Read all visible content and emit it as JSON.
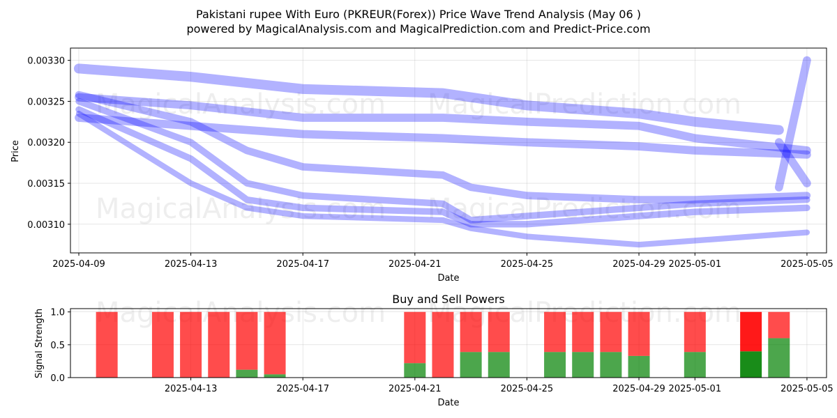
{
  "header": {
    "title": "Pakistani rupee With Euro (PKREUR(Forex)) Price Wave Trend Analysis (May 06 )",
    "subtitle": "powered by MagicalAnalysis.com and MagicalPrediction.com and Predict-Price.com"
  },
  "watermarks": [
    "MagicalAnalysis.com",
    "MagicalPrediction.com"
  ],
  "colors": {
    "wave": "#0000ff",
    "buy": "#008000",
    "sell": "#ff0000"
  },
  "chart_data": [
    {
      "type": "line",
      "xlabel": "Date",
      "ylabel": "Price",
      "x_ticks": [
        "2025-04-09",
        "2025-04-13",
        "2025-04-17",
        "2025-04-21",
        "2025-04-25",
        "2025-04-29",
        "2025-05-01",
        "2025-05-05"
      ],
      "y_ticks": [
        "0.00310",
        "0.00315",
        "0.00320",
        "0.00325",
        "0.00330"
      ],
      "ylim": [
        0.003065,
        0.003315
      ],
      "xlim": [
        "2025-04-08",
        "2025-05-06"
      ],
      "grid": true,
      "series": [
        {
          "x": [
            "2025-04-09",
            "2025-04-13",
            "2025-04-17",
            "2025-04-22",
            "2025-04-25",
            "2025-04-29",
            "2025-05-01",
            "2025-05-04"
          ],
          "values": [
            0.00329,
            0.00328,
            0.003265,
            0.00326,
            0.003245,
            0.003235,
            0.003225,
            0.003215
          ],
          "width": 1.2e-05
        },
        {
          "x": [
            "2025-04-09",
            "2025-04-13",
            "2025-04-17",
            "2025-04-22",
            "2025-04-25",
            "2025-04-29",
            "2025-05-01",
            "2025-05-05"
          ],
          "values": [
            0.00323,
            0.00322,
            0.00321,
            0.003205,
            0.0032,
            0.003195,
            0.00319,
            0.003185
          ],
          "width": 1e-05
        },
        {
          "x": [
            "2025-04-09",
            "2025-04-13",
            "2025-04-17",
            "2025-04-22",
            "2025-04-25",
            "2025-04-29",
            "2025-05-01",
            "2025-05-05"
          ],
          "values": [
            0.003255,
            0.003245,
            0.00323,
            0.00323,
            0.003225,
            0.00322,
            0.003205,
            0.00319
          ],
          "width": 1e-05
        },
        {
          "x": [
            "2025-04-09",
            "2025-04-13",
            "2025-04-15",
            "2025-04-17",
            "2025-04-22",
            "2025-04-23",
            "2025-04-25",
            "2025-04-29",
            "2025-05-01",
            "2025-05-05"
          ],
          "values": [
            0.003258,
            0.003225,
            0.00319,
            0.00317,
            0.00316,
            0.003145,
            0.003135,
            0.00313,
            0.00313,
            0.003135
          ],
          "width": 9e-06
        },
        {
          "x": [
            "2025-04-09",
            "2025-04-13",
            "2025-04-15",
            "2025-04-17",
            "2025-04-22",
            "2025-04-23",
            "2025-04-25",
            "2025-04-29",
            "2025-05-01",
            "2025-05-05"
          ],
          "values": [
            0.00325,
            0.0032,
            0.00315,
            0.003135,
            0.003125,
            0.003105,
            0.00311,
            0.00312,
            0.003125,
            0.00313
          ],
          "width": 8e-06
        },
        {
          "x": [
            "2025-04-09",
            "2025-04-13",
            "2025-04-15",
            "2025-04-17",
            "2025-04-22",
            "2025-04-23",
            "2025-04-25",
            "2025-04-29",
            "2025-05-01",
            "2025-05-05"
          ],
          "values": [
            0.00324,
            0.00318,
            0.00313,
            0.00312,
            0.003115,
            0.0031,
            0.0031,
            0.00311,
            0.003115,
            0.00312
          ],
          "width": 8e-06
        },
        {
          "x": [
            "2025-04-09",
            "2025-04-13",
            "2025-04-15",
            "2025-04-17",
            "2025-04-22",
            "2025-04-23",
            "2025-04-25",
            "2025-04-29",
            "2025-05-01",
            "2025-05-05"
          ],
          "values": [
            0.003235,
            0.00315,
            0.00312,
            0.00311,
            0.003105,
            0.003095,
            0.003085,
            0.003075,
            0.00308,
            0.00309
          ],
          "width": 7e-06
        },
        {
          "x": [
            "2025-05-04",
            "2025-05-05"
          ],
          "values": [
            0.003145,
            0.0033
          ],
          "width": 1e-05
        },
        {
          "x": [
            "2025-05-04",
            "2025-05-05"
          ],
          "values": [
            0.0032,
            0.00315
          ],
          "width": 1e-05
        }
      ]
    },
    {
      "type": "bar",
      "title": "Buy and Sell Powers",
      "xlabel": "Date",
      "ylabel": "Signal Strength",
      "x_ticks": [
        "2025-04-13",
        "2025-04-17",
        "2025-04-21",
        "2025-04-25",
        "2025-04-29",
        "2025-05-01",
        "2025-05-05"
      ],
      "y_ticks": [
        "0.0",
        "0.5",
        "1.0"
      ],
      "ylim": [
        0,
        1.05
      ],
      "categories": [
        "2025-04-10",
        "2025-04-12",
        "2025-04-13",
        "2025-04-14",
        "2025-04-15",
        "2025-04-16",
        "2025-04-21",
        "2025-04-22",
        "2025-04-23",
        "2025-04-24",
        "2025-04-26",
        "2025-04-27",
        "2025-04-28",
        "2025-04-29",
        "2025-05-01",
        "2025-05-03",
        "2025-05-04"
      ],
      "series": [
        {
          "name": "buy",
          "values": [
            0.0,
            0.0,
            0.0,
            0.0,
            0.12,
            0.05,
            0.22,
            0.0,
            0.39,
            0.39,
            0.39,
            0.39,
            0.39,
            0.33,
            0.39,
            0.4,
            0.6
          ]
        },
        {
          "name": "sell",
          "values": [
            1.0,
            1.0,
            1.0,
            1.0,
            0.88,
            0.95,
            0.78,
            1.0,
            0.61,
            0.61,
            0.61,
            0.61,
            0.61,
            0.67,
            0.61,
            0.6,
            0.4
          ]
        }
      ]
    }
  ]
}
